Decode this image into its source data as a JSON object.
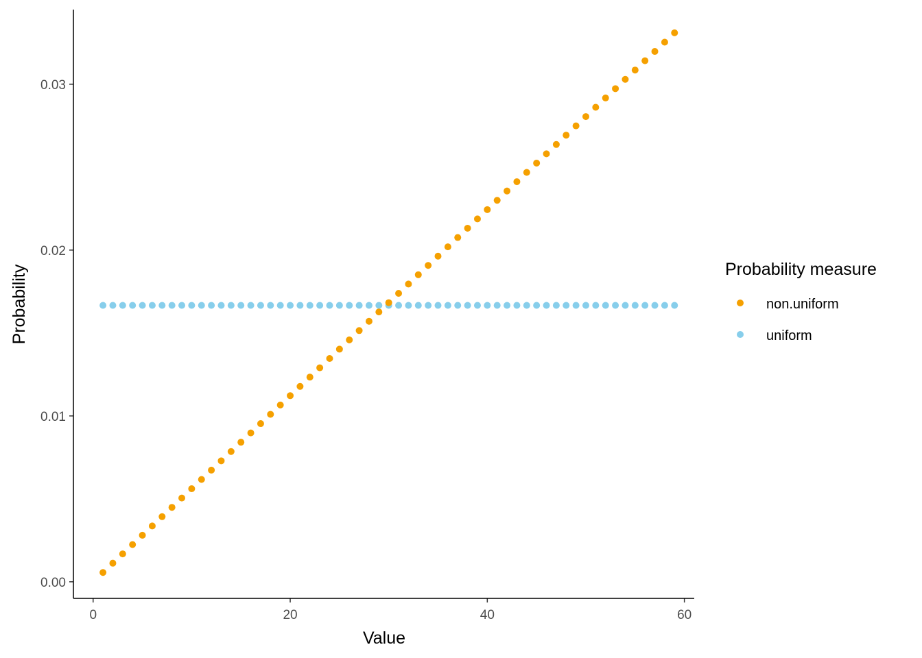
{
  "chart_data": {
    "type": "scatter",
    "xlabel": "Value",
    "ylabel": "Probability",
    "xlim": [
      -2,
      61
    ],
    "ylim": [
      -0.001,
      0.0345
    ],
    "xticks": [
      0,
      20,
      40,
      60
    ],
    "xtick_labels": [
      "0",
      "20",
      "40",
      "60"
    ],
    "yticks": [
      0.0,
      0.01,
      0.02,
      0.03
    ],
    "ytick_labels": [
      "0.00",
      "0.01",
      "0.02",
      "0.03"
    ],
    "grid": false,
    "legend": {
      "title": "Probability measure",
      "position": "right"
    },
    "x": [
      1,
      2,
      3,
      4,
      5,
      6,
      7,
      8,
      9,
      10,
      11,
      12,
      13,
      14,
      15,
      16,
      17,
      18,
      19,
      20,
      21,
      22,
      23,
      24,
      25,
      26,
      27,
      28,
      29,
      30,
      31,
      32,
      33,
      34,
      35,
      36,
      37,
      38,
      39,
      40,
      41,
      42,
      43,
      44,
      45,
      46,
      47,
      48,
      49,
      50,
      51,
      52,
      53,
      54,
      55,
      56,
      57,
      58,
      59
    ],
    "series": [
      {
        "name": "non.uniform",
        "color": "#F5A000",
        "values": [
          0.000561,
          0.001122,
          0.001683,
          0.002244,
          0.002805,
          0.003366,
          0.003927,
          0.004488,
          0.005049,
          0.00561,
          0.006171,
          0.006732,
          0.007293,
          0.007854,
          0.008415,
          0.008976,
          0.009537,
          0.010098,
          0.010659,
          0.01122,
          0.011781,
          0.012342,
          0.012903,
          0.013464,
          0.014025,
          0.014586,
          0.015147,
          0.015708,
          0.016269,
          0.01683,
          0.017391,
          0.017952,
          0.018513,
          0.019074,
          0.019635,
          0.020196,
          0.020757,
          0.021318,
          0.021879,
          0.02244,
          0.023001,
          0.023562,
          0.024123,
          0.024684,
          0.025245,
          0.025806,
          0.026367,
          0.026928,
          0.027489,
          0.02805,
          0.028611,
          0.029172,
          0.029733,
          0.030294,
          0.030855,
          0.031416,
          0.031977,
          0.032538,
          0.033099
        ]
      },
      {
        "name": "uniform",
        "color": "#87CEEB",
        "values": [
          0.016667,
          0.016667,
          0.016667,
          0.016667,
          0.016667,
          0.016667,
          0.016667,
          0.016667,
          0.016667,
          0.016667,
          0.016667,
          0.016667,
          0.016667,
          0.016667,
          0.016667,
          0.016667,
          0.016667,
          0.016667,
          0.016667,
          0.016667,
          0.016667,
          0.016667,
          0.016667,
          0.016667,
          0.016667,
          0.016667,
          0.016667,
          0.016667,
          0.016667,
          0.016667,
          0.016667,
          0.016667,
          0.016667,
          0.016667,
          0.016667,
          0.016667,
          0.016667,
          0.016667,
          0.016667,
          0.016667,
          0.016667,
          0.016667,
          0.016667,
          0.016667,
          0.016667,
          0.016667,
          0.016667,
          0.016667,
          0.016667,
          0.016667,
          0.016667,
          0.016667,
          0.016667,
          0.016667,
          0.016667,
          0.016667,
          0.016667,
          0.016667,
          0.016667
        ]
      }
    ]
  }
}
